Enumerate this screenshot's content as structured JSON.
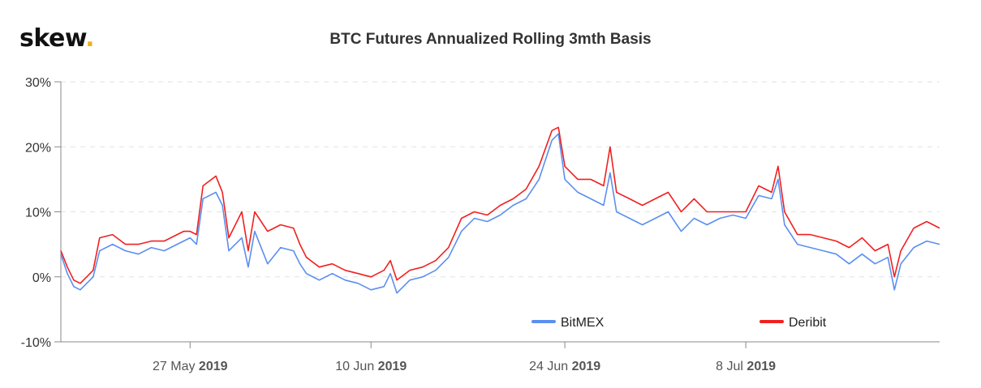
{
  "brand": {
    "name": "skew",
    "dot": "."
  },
  "chart_data": {
    "type": "line",
    "title": "BTC Futures Annualized Rolling 3mth Basis",
    "xlabel": "",
    "ylabel": "",
    "ylim": [
      -10,
      30
    ],
    "yticks": [
      "30%",
      "20%",
      "10%",
      "0%",
      "-10%"
    ],
    "yticks_values": [
      30,
      20,
      10,
      0,
      -10
    ],
    "xlim": [
      0,
      68
    ],
    "xticks": [
      {
        "x": 10,
        "day": "27 May",
        "year": "2019"
      },
      {
        "x": 24,
        "day": "10 Jun",
        "year": "2019"
      },
      {
        "x": 39,
        "day": "24 Jun",
        "year": "2019"
      },
      {
        "x": 53,
        "day": "8 Jul",
        "year": "2019"
      }
    ],
    "grid": "horizontal-dashed",
    "legend_position": "bottom-right",
    "series": [
      {
        "name": "BitMEX",
        "color": "#5b8ff0",
        "x": [
          0,
          0.5,
          1,
          1.5,
          2,
          2.5,
          3,
          4,
          5,
          6,
          7,
          8,
          9,
          9.5,
          10,
          10.5,
          11,
          12,
          12.5,
          13,
          14,
          14.5,
          15,
          16,
          17,
          18,
          18.5,
          19,
          20,
          21,
          22,
          23,
          24,
          25,
          25.5,
          26,
          27,
          28,
          29,
          30,
          31,
          32,
          33,
          34,
          35,
          36,
          37,
          38,
          38.5,
          39,
          40,
          41,
          42,
          42.5,
          43,
          44,
          45,
          46,
          47,
          48,
          49,
          50,
          51,
          52,
          53,
          54,
          55,
          55.5,
          56,
          57,
          58,
          59,
          60,
          61,
          62,
          63,
          64,
          64.5,
          65,
          66,
          67,
          68
        ],
        "y": [
          3.5,
          0.5,
          -1.5,
          -2,
          -1,
          0,
          4,
          5,
          4,
          3.5,
          4.5,
          4,
          5,
          5.5,
          6,
          5,
          12,
          13,
          11,
          4,
          6,
          1.5,
          7,
          2,
          4.5,
          4,
          2,
          0.5,
          -0.5,
          0.5,
          -0.5,
          -1,
          -2,
          -1.5,
          0.5,
          -2.5,
          -0.5,
          0,
          1,
          3,
          7,
          9,
          8.5,
          9.5,
          11,
          12,
          15,
          21,
          22,
          15,
          13,
          12,
          11,
          16,
          10,
          9,
          8,
          9,
          10,
          7,
          9,
          8,
          9,
          9.5,
          9,
          12.5,
          12,
          15,
          8,
          5,
          4.5,
          4,
          3.5,
          2,
          3.5,
          2,
          3,
          -2,
          2,
          4.5,
          5.5,
          5
        ]
      },
      {
        "name": "Deribit",
        "color": "#f02020",
        "x": [
          0,
          0.5,
          1,
          1.5,
          2,
          2.5,
          3,
          4,
          5,
          6,
          7,
          8,
          9,
          9.5,
          10,
          10.5,
          11,
          12,
          12.5,
          13,
          14,
          14.5,
          15,
          16,
          17,
          18,
          18.5,
          19,
          20,
          21,
          22,
          23,
          24,
          25,
          25.5,
          26,
          27,
          28,
          29,
          30,
          31,
          32,
          33,
          34,
          35,
          36,
          37,
          38,
          38.5,
          39,
          40,
          41,
          42,
          42.5,
          43,
          44,
          45,
          46,
          47,
          48,
          49,
          50,
          51,
          52,
          53,
          54,
          55,
          55.5,
          56,
          57,
          58,
          59,
          60,
          61,
          62,
          63,
          64,
          64.5,
          65,
          66,
          67,
          68
        ],
        "y": [
          4,
          1.5,
          -0.5,
          -1,
          0,
          1,
          6,
          6.5,
          5,
          5,
          5.5,
          5.5,
          6.5,
          7,
          7,
          6.5,
          14,
          15.5,
          13,
          6,
          10,
          4,
          10,
          7,
          8,
          7.5,
          5,
          3,
          1.5,
          2,
          1,
          0.5,
          0,
          1,
          2.5,
          -0.5,
          1,
          1.5,
          2.5,
          4.5,
          9,
          10,
          9.5,
          11,
          12,
          13.5,
          17,
          22.5,
          23,
          17,
          15,
          15,
          14,
          20,
          13,
          12,
          11,
          12,
          13,
          10,
          12,
          10,
          10,
          10,
          10,
          14,
          13,
          17,
          10,
          6.5,
          6.5,
          6,
          5.5,
          4.5,
          6,
          4,
          5,
          0,
          4,
          7.5,
          8.5,
          7.5
        ]
      }
    ]
  }
}
